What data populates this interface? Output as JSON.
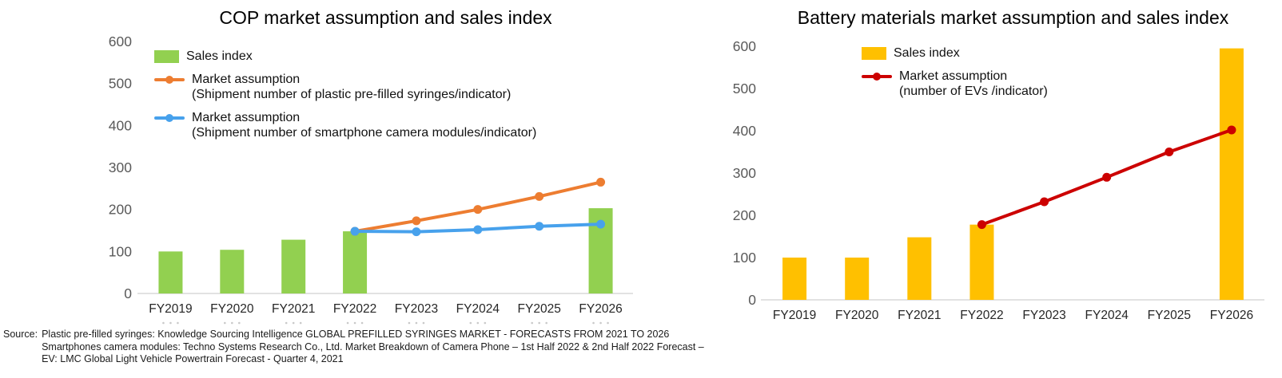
{
  "page": {
    "background": "#ffffff"
  },
  "colors": {
    "green": "#92D050",
    "orange": "#ED7D31",
    "blue": "#47A1EC",
    "amber": "#FFC000",
    "red": "#CC0000",
    "axis_line": "#D9D9D9",
    "ytick_text": "#595959",
    "xlabel_text": "#262626",
    "dots": "#C9C9C9"
  },
  "chart_data": [
    {
      "type": "bar",
      "title": "COP market assumption and sales index",
      "categories": [
        "FY2019",
        "FY2020",
        "FY2021",
        "FY2022",
        "FY2023",
        "FY2024",
        "FY2025",
        "FY2026"
      ],
      "series": [
        {
          "name": "Sales index",
          "kind": "bar",
          "color": "#92D050",
          "values": [
            100,
            104,
            128,
            148,
            null,
            null,
            null,
            203
          ]
        },
        {
          "name": "Market assumption (Shipment number of plastic pre-filled syringes/indicator)",
          "kind": "line",
          "color": "#ED7D31",
          "values": [
            null,
            null,
            null,
            148,
            173,
            200,
            231,
            265
          ]
        },
        {
          "name": "Market assumption (Shipment number of smartphone camera modules/indicator)",
          "kind": "line",
          "color": "#47A1EC",
          "values": [
            null,
            null,
            null,
            148,
            147,
            152,
            160,
            165
          ]
        }
      ],
      "legend": [
        {
          "kind": "bar",
          "color": "#92D050",
          "lines": [
            "Sales index"
          ]
        },
        {
          "kind": "line",
          "color": "#ED7D31",
          "lines": [
            "Market assumption",
            "(Shipment number of plastic pre-filled syringes/indicator)"
          ]
        },
        {
          "kind": "line",
          "color": "#47A1EC",
          "lines": [
            "Market assumption",
            "(Shipment number of smartphone camera modules/indicator)"
          ]
        }
      ],
      "ylim": [
        0,
        600
      ],
      "yticks": [
        0,
        100,
        200,
        300,
        400,
        500,
        600
      ],
      "grid": false,
      "legend_position": "inside-top-left"
    },
    {
      "type": "bar",
      "title": "Battery materials market assumption and sales index",
      "categories": [
        "FY2019",
        "FY2020",
        "FY2021",
        "FY2022",
        "FY2023",
        "FY2024",
        "FY2025",
        "FY2026"
      ],
      "series": [
        {
          "name": "Sales index",
          "kind": "bar",
          "color": "#FFC000",
          "values": [
            100,
            100,
            148,
            178,
            null,
            null,
            null,
            595
          ]
        },
        {
          "name": "Market assumption (number of EVs /indicator)",
          "kind": "line",
          "color": "#CC0000",
          "values": [
            null,
            null,
            null,
            178,
            232,
            290,
            350,
            402
          ]
        }
      ],
      "legend": [
        {
          "kind": "bar",
          "color": "#FFC000",
          "lines": [
            "Sales index"
          ]
        },
        {
          "kind": "line",
          "color": "#CC0000",
          "lines": [
            "Market assumption",
            "(number of EVs /indicator)"
          ]
        }
      ],
      "ylim": [
        0,
        600
      ],
      "yticks": [
        0,
        100,
        200,
        300,
        400,
        500,
        600
      ],
      "grid": false,
      "legend_position": "inside-top-center"
    }
  ],
  "source": {
    "label": "Source:",
    "lines": [
      "Plastic pre-filled syringes: Knowledge Sourcing Intelligence GLOBAL PREFILLED SYRINGES MARKET - FORECASTS FROM 2021 TO 2026",
      "Smartphones camera modules: Techno Systems Research Co., Ltd. Market Breakdown of Camera Phone – 1st Half 2022 & 2nd Half 2022 Forecast –",
      "EV: LMC Global Light Vehicle Powertrain Forecast - Quarter 4, 2021"
    ]
  }
}
